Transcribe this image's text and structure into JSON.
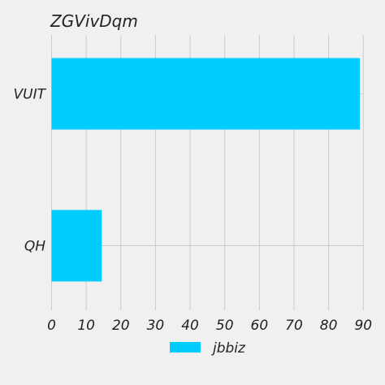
{
  "chart_data": {
    "type": "bar",
    "orientation": "horizontal",
    "title": "ZGVivDqm",
    "xlabel": "",
    "ylabel": "",
    "categories": [
      "VUIT",
      "QH"
    ],
    "series": [
      {
        "name": "jbbiz",
        "values": [
          89,
          14.5
        ],
        "color": "#00ccff"
      }
    ],
    "xlim": [
      0,
      90
    ],
    "xticks": [
      0,
      10,
      20,
      30,
      40,
      50,
      60,
      70,
      80,
      90
    ],
    "xtick_labels": [
      "0",
      "10",
      "20",
      "30",
      "40",
      "50",
      "60",
      "70",
      "80",
      "90"
    ],
    "grid": true,
    "legend": {
      "position": "bottom-center",
      "entries": [
        "jbbiz"
      ]
    },
    "background": "#f0f0f0"
  }
}
